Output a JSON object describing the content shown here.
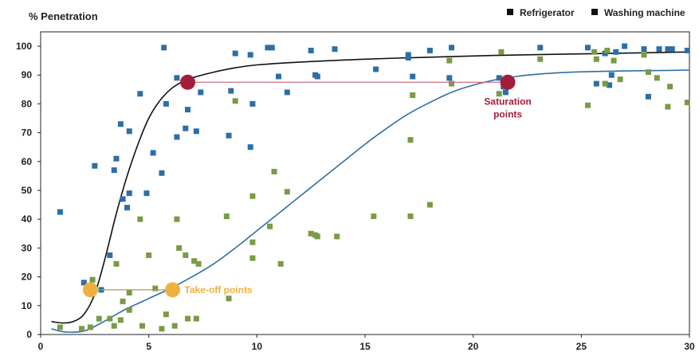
{
  "chart_data": {
    "type": "scatter",
    "ylabel": "% Penetration",
    "xlabel": "",
    "xlim": [
      0,
      30
    ],
    "ylim": [
      0,
      100
    ],
    "x_ticks": [
      0,
      5,
      10,
      15,
      20,
      25,
      30
    ],
    "y_ticks": [
      0,
      10,
      20,
      30,
      40,
      50,
      60,
      70,
      80,
      90,
      100
    ],
    "grid": false,
    "legend": {
      "placement": "top-right"
    },
    "series": [
      {
        "name": "Refrigerator",
        "color": "#2e6ea6",
        "marker": "square",
        "points": [
          [
            0.9,
            42.5
          ],
          [
            2.0,
            18
          ],
          [
            2.5,
            58.5
          ],
          [
            2.8,
            15.5
          ],
          [
            3.2,
            27.5
          ],
          [
            3.4,
            57
          ],
          [
            3.5,
            61
          ],
          [
            3.7,
            73
          ],
          [
            3.8,
            47
          ],
          [
            4.0,
            44
          ],
          [
            4.1,
            49
          ],
          [
            4.1,
            70.5
          ],
          [
            4.6,
            83.5
          ],
          [
            4.9,
            49
          ],
          [
            5.2,
            63
          ],
          [
            5.6,
            56
          ],
          [
            5.7,
            99.5
          ],
          [
            5.8,
            80
          ],
          [
            6.3,
            89
          ],
          [
            6.3,
            68.5
          ],
          [
            6.7,
            71.5
          ],
          [
            6.8,
            78
          ],
          [
            7.2,
            70.5
          ],
          [
            7.4,
            84
          ],
          [
            8.7,
            69
          ],
          [
            8.8,
            84.5
          ],
          [
            9.0,
            97.5
          ],
          [
            9.7,
            97
          ],
          [
            9.8,
            80
          ],
          [
            9.7,
            65
          ],
          [
            10.5,
            99.5
          ],
          [
            10.7,
            99.5
          ],
          [
            11.0,
            89.5
          ],
          [
            11.4,
            84
          ],
          [
            12.5,
            98.5
          ],
          [
            12.7,
            90
          ],
          [
            12.8,
            89.5
          ],
          [
            13.6,
            99
          ],
          [
            15.5,
            92
          ],
          [
            17.0,
            97
          ],
          [
            17.0,
            96
          ],
          [
            17.2,
            89.5
          ],
          [
            18.0,
            98.5
          ],
          [
            18.9,
            89
          ],
          [
            19.0,
            99.5
          ],
          [
            21.2,
            89
          ],
          [
            21.4,
            86
          ],
          [
            21.5,
            84
          ],
          [
            23.1,
            99.5
          ],
          [
            25.3,
            99.5
          ],
          [
            25.7,
            87
          ],
          [
            26.1,
            97.5
          ],
          [
            26.3,
            86.5
          ],
          [
            26.4,
            90
          ],
          [
            26.6,
            98
          ],
          [
            27.0,
            100
          ],
          [
            27.9,
            99
          ],
          [
            28.1,
            82.5
          ],
          [
            28.6,
            99
          ],
          [
            29.0,
            99
          ],
          [
            29.2,
            99
          ],
          [
            29.9,
            98.5
          ]
        ]
      },
      {
        "name": "Washing machine",
        "color": "#7a9a45",
        "marker": "square",
        "points": [
          [
            0.9,
            2.5
          ],
          [
            1.9,
            2
          ],
          [
            2.3,
            2.5
          ],
          [
            2.4,
            19
          ],
          [
            2.7,
            5.5
          ],
          [
            3.2,
            5.5
          ],
          [
            3.4,
            3
          ],
          [
            3.5,
            24.5
          ],
          [
            3.7,
            5
          ],
          [
            3.8,
            11.5
          ],
          [
            4.1,
            8.5
          ],
          [
            4.1,
            14.5
          ],
          [
            4.6,
            40
          ],
          [
            4.7,
            3
          ],
          [
            5.0,
            27.5
          ],
          [
            5.3,
            16
          ],
          [
            5.6,
            2
          ],
          [
            5.8,
            7
          ],
          [
            6.2,
            3
          ],
          [
            6.3,
            40
          ],
          [
            6.4,
            30
          ],
          [
            6.7,
            27.5
          ],
          [
            6.8,
            5.5
          ],
          [
            7.1,
            25.5
          ],
          [
            7.2,
            5.5
          ],
          [
            7.3,
            24.5
          ],
          [
            8.6,
            41
          ],
          [
            8.7,
            12.5
          ],
          [
            9.0,
            81
          ],
          [
            9.8,
            48
          ],
          [
            9.8,
            32
          ],
          [
            9.8,
            26.5
          ],
          [
            10.6,
            37.5
          ],
          [
            10.8,
            56.5
          ],
          [
            11.1,
            24.5
          ],
          [
            11.4,
            49.5
          ],
          [
            12.5,
            35
          ],
          [
            12.7,
            34.5
          ],
          [
            12.8,
            34
          ],
          [
            13.7,
            34
          ],
          [
            15.4,
            41
          ],
          [
            17.1,
            67.5
          ],
          [
            17.1,
            41
          ],
          [
            17.2,
            83
          ],
          [
            18.0,
            45
          ],
          [
            18.9,
            95
          ],
          [
            19.0,
            87
          ],
          [
            21.2,
            83.5
          ],
          [
            21.3,
            98
          ],
          [
            23.1,
            95.5
          ],
          [
            25.3,
            79.5
          ],
          [
            25.6,
            98
          ],
          [
            25.7,
            95.5
          ],
          [
            26.1,
            87
          ],
          [
            26.2,
            98.5
          ],
          [
            26.5,
            95
          ],
          [
            26.8,
            88.5
          ],
          [
            27.9,
            97
          ],
          [
            28.1,
            91
          ],
          [
            28.5,
            89
          ],
          [
            29.0,
            79
          ],
          [
            29.1,
            86
          ],
          [
            29.9,
            80.5
          ]
        ]
      }
    ],
    "curves": [
      {
        "series": "Refrigerator",
        "color": "#111111",
        "points": [
          [
            0.5,
            4.5
          ],
          [
            1.0,
            4
          ],
          [
            1.5,
            4.5
          ],
          [
            2.0,
            7
          ],
          [
            2.5,
            14
          ],
          [
            3.0,
            27
          ],
          [
            3.5,
            42
          ],
          [
            4.0,
            55
          ],
          [
            4.5,
            66
          ],
          [
            5.0,
            75
          ],
          [
            5.5,
            81
          ],
          [
            6.0,
            85
          ],
          [
            6.5,
            87.5
          ],
          [
            7.0,
            89
          ],
          [
            8.0,
            91
          ],
          [
            9.0,
            92.5
          ],
          [
            10.0,
            93.5
          ],
          [
            12.0,
            94.5
          ],
          [
            15.0,
            95.5
          ],
          [
            18.0,
            96.2
          ],
          [
            21.0,
            96.8
          ],
          [
            24.0,
            97.2
          ],
          [
            27.0,
            97.6
          ],
          [
            30.0,
            98
          ]
        ]
      },
      {
        "series": "Washing machine",
        "color": "#2e6ea6",
        "points": [
          [
            0.5,
            2
          ],
          [
            1.0,
            1
          ],
          [
            1.5,
            0.8
          ],
          [
            2.0,
            1.2
          ],
          [
            2.5,
            2.8
          ],
          [
            3.0,
            4.8
          ],
          [
            3.5,
            7
          ],
          [
            4.0,
            9
          ],
          [
            5.0,
            12.5
          ],
          [
            6.0,
            16
          ],
          [
            7.0,
            20
          ],
          [
            8.0,
            24.5
          ],
          [
            9.0,
            30
          ],
          [
            10.0,
            36
          ],
          [
            11.0,
            42
          ],
          [
            12.0,
            48
          ],
          [
            13.0,
            54
          ],
          [
            14.0,
            60
          ],
          [
            15.0,
            66
          ],
          [
            16.0,
            71.5
          ],
          [
            17.0,
            76.5
          ],
          [
            18.0,
            80.5
          ],
          [
            19.0,
            84
          ],
          [
            20.0,
            86.5
          ],
          [
            21.0,
            88.3
          ],
          [
            22.0,
            89.5
          ],
          [
            23.0,
            90.3
          ],
          [
            24.0,
            90.8
          ],
          [
            25.0,
            91.1
          ],
          [
            27.0,
            91.4
          ],
          [
            29.0,
            91.6
          ],
          [
            30.0,
            91.7
          ]
        ]
      }
    ],
    "annotations": [
      {
        "label": "Saturation points",
        "lines": [
          "Saturation",
          "points"
        ],
        "color": "#a31e3a",
        "markers": [
          [
            6.8,
            87.5
          ],
          [
            21.6,
            87.5
          ]
        ]
      },
      {
        "label": "Take-off points",
        "lines": [
          "Take-off points"
        ],
        "color": "#f0b040",
        "markers": [
          [
            2.3,
            15.5
          ],
          [
            6.1,
            15.5
          ]
        ]
      }
    ]
  }
}
